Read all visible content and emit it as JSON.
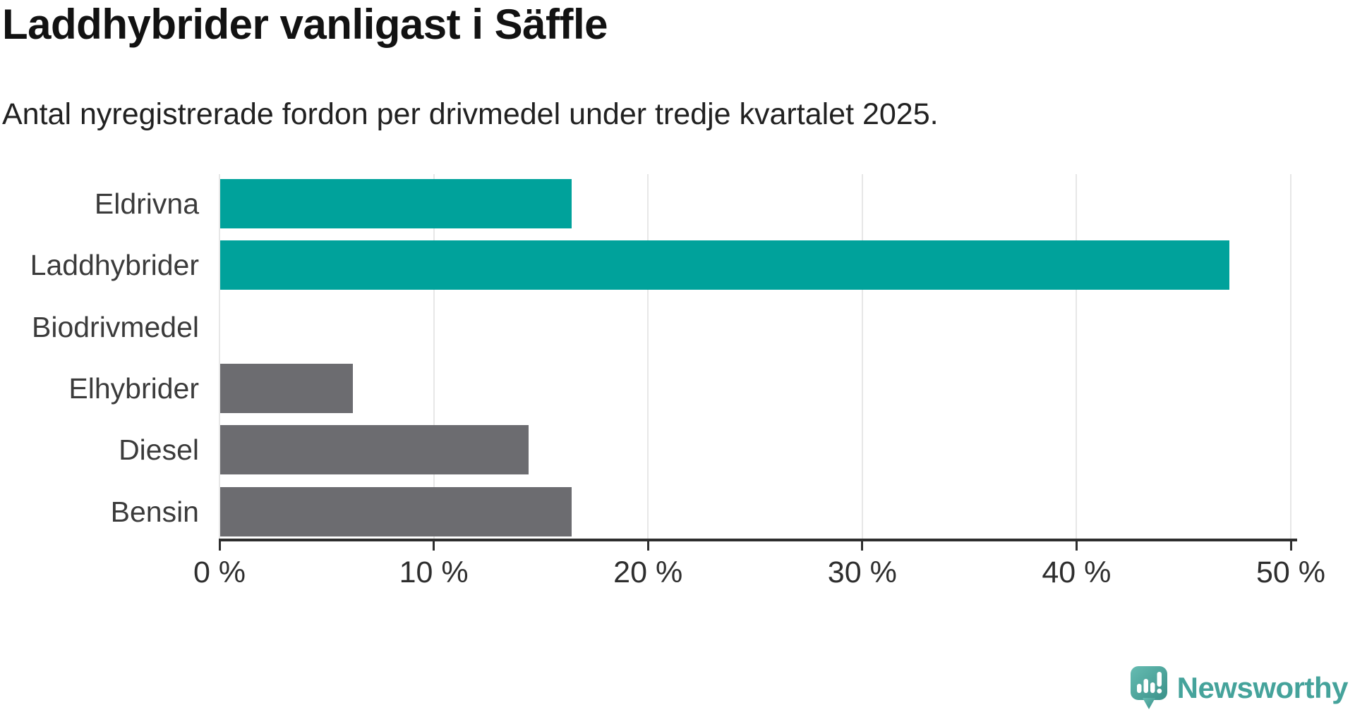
{
  "title": "Laddhybrider vanligast i Säffle",
  "subtitle": "Antal nyregistrerade fordon per drivmedel under tredje kvartalet 2025.",
  "chart_data": {
    "type": "bar",
    "orientation": "horizontal",
    "title": "Laddhybrider vanligast i Säffle",
    "subtitle": "Antal nyregistrerade fordon per drivmedel under tredje kvartalet 2025.",
    "categories": [
      "Eldrivna",
      "Laddhybrider",
      "Biodrivmedel",
      "Elhybrider",
      "Diesel",
      "Bensin"
    ],
    "values": [
      16.4,
      47.1,
      0,
      6.2,
      14.4,
      16.4
    ],
    "unit": "%",
    "xlim": [
      0,
      50
    ],
    "x_ticks": [
      0,
      10,
      20,
      30,
      40,
      50
    ],
    "x_tick_labels": [
      "0 %",
      "10 %",
      "20 %",
      "30 %",
      "40 %",
      "50 %"
    ],
    "bar_colors": [
      "#00A29B",
      "#00A29B",
      "#6C6C70",
      "#6C6C70",
      "#6C6C70",
      "#6C6C70"
    ],
    "grid": true,
    "legend": "none"
  },
  "colors": {
    "accent_teal": "#00A29B",
    "muted_gray": "#6C6C70",
    "gridline": "#E7E7E7",
    "axis": "#2E2E2E",
    "label_text": "#3B3B3B",
    "logo_teal": "#45A39B"
  },
  "branding": {
    "logo_text": "Newsworthy"
  }
}
